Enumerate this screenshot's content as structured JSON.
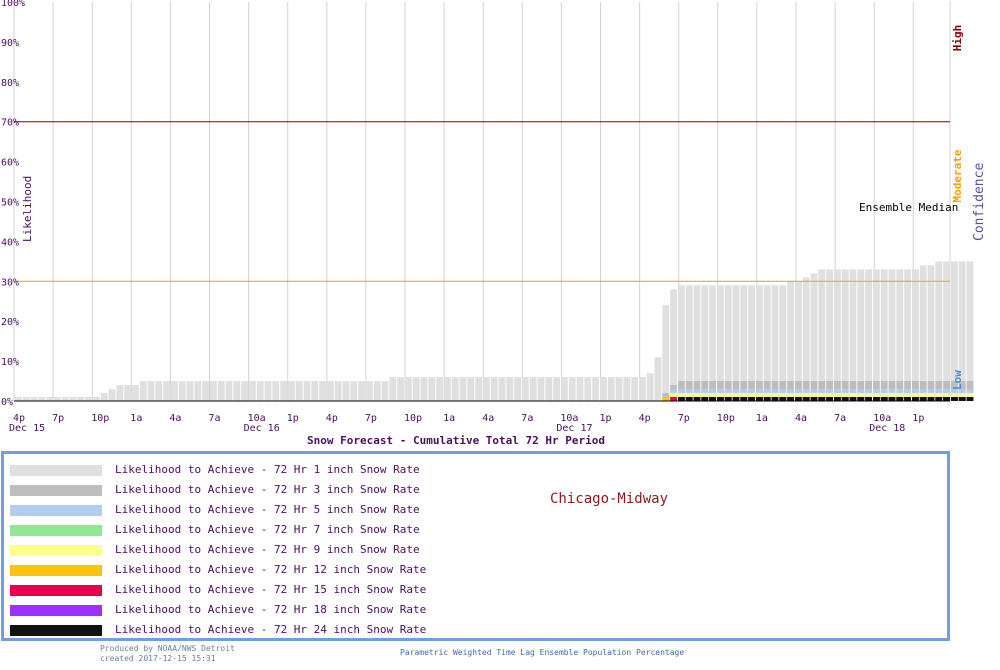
{
  "chart_data": {
    "type": "bar",
    "title": "Snow Forecast - Cumulative Total 72 Hr Period",
    "ylabel": "Likelihood",
    "ylim": [
      0,
      100
    ],
    "y_ticks": [
      "0%",
      "10%",
      "20%",
      "30%",
      "40%",
      "50%",
      "60%",
      "70%",
      "80%",
      "90%",
      "100%"
    ],
    "x_tick_labels": [
      "4p",
      "7p",
      "10p",
      "1a",
      "4a",
      "7a",
      "10a",
      "1p",
      "4p",
      "7p",
      "10p",
      "1a",
      "4a",
      "7a",
      "10a",
      "1p",
      "4p",
      "7p",
      "10p",
      "1a",
      "4a",
      "7a",
      "10a",
      "1p"
    ],
    "date_labels": [
      {
        "label": "Dec 15",
        "tick_index": 0
      },
      {
        "label": "Dec 16",
        "tick_index": 6
      },
      {
        "label": "Dec 17",
        "tick_index": 14
      },
      {
        "label": "Dec 18",
        "tick_index": 22
      }
    ],
    "confidence_label": "Confidence",
    "confidence_levels": [
      {
        "label": "High",
        "value": 70,
        "color": "#8b0000"
      },
      {
        "label": "Moderate",
        "value": 30,
        "color": "#f5a000"
      },
      {
        "label": "Low",
        "value": 5,
        "color": "#3d8fd6"
      }
    ],
    "median_label": "Ensemble Median",
    "series": [
      {
        "name": "Likelihood to Achieve -  72 Hr 1 inch Snow Rate",
        "color": "#e0e0e0",
        "values": [
          1,
          1,
          1,
          1,
          1,
          1,
          1,
          1,
          1,
          1,
          1,
          2,
          3,
          4,
          4,
          4,
          5,
          5,
          5,
          5,
          5,
          5,
          5,
          5,
          5,
          5,
          5,
          5,
          5,
          5,
          5,
          5,
          5,
          5,
          5,
          5,
          5,
          5,
          5,
          5,
          5,
          5,
          5,
          5,
          5,
          5,
          5,
          5,
          6,
          6,
          6,
          6,
          6,
          6,
          6,
          6,
          6,
          6,
          6,
          6,
          6,
          6,
          6,
          6,
          6,
          6,
          6,
          6,
          6,
          6,
          6,
          6,
          6,
          6,
          6,
          6,
          6,
          6,
          6,
          6,
          6,
          7,
          11,
          24,
          28,
          29,
          29,
          29,
          29,
          29,
          29,
          29,
          29,
          29,
          29,
          29,
          29,
          29,
          29,
          30,
          30,
          31,
          32,
          33,
          33,
          33,
          33,
          33,
          33,
          33,
          33,
          33,
          33,
          33,
          33,
          33,
          34,
          34,
          35,
          35,
          35,
          35,
          35
        ]
      },
      {
        "name": "Likelihood to Achieve -  72 Hr 3 inch Snow Rate",
        "color": "#bdbdbd",
        "values": [
          0,
          0,
          0,
          0,
          0,
          0,
          0,
          0,
          0,
          0,
          0,
          0,
          0,
          0,
          0,
          0,
          0,
          0,
          0,
          0,
          0,
          0,
          0,
          0,
          0,
          0,
          0,
          0,
          0,
          0,
          0,
          0,
          0,
          0,
          0,
          0,
          0,
          0,
          0,
          0,
          0,
          0,
          0,
          0,
          0,
          0,
          0,
          0,
          0,
          0,
          0,
          0,
          0,
          0,
          0,
          0,
          0,
          0,
          0,
          0,
          0,
          0,
          0,
          0,
          0,
          0,
          0,
          0,
          0,
          0,
          0,
          0,
          0,
          0,
          0,
          0,
          0,
          0,
          0,
          0,
          0,
          0,
          0,
          2,
          4,
          5,
          5,
          5,
          5,
          5,
          5,
          5,
          5,
          5,
          5,
          5,
          5,
          5,
          5,
          5,
          5,
          5,
          5,
          5,
          5,
          5,
          5,
          5,
          5,
          5,
          5,
          5,
          5,
          5,
          5,
          5,
          5,
          5,
          5,
          5,
          5,
          5,
          5
        ]
      },
      {
        "name": "Likelihood to Achieve -  72 Hr 5 inch Snow Rate",
        "color": "#b3cdf0",
        "values": [
          0,
          0,
          0,
          0,
          0,
          0,
          0,
          0,
          0,
          0,
          0,
          0,
          0,
          0,
          0,
          0,
          0,
          0,
          0,
          0,
          0,
          0,
          0,
          0,
          0,
          0,
          0,
          0,
          0,
          0,
          0,
          0,
          0,
          0,
          0,
          0,
          0,
          0,
          0,
          0,
          0,
          0,
          0,
          0,
          0,
          0,
          0,
          0,
          0,
          0,
          0,
          0,
          0,
          0,
          0,
          0,
          0,
          0,
          0,
          0,
          0,
          0,
          0,
          0,
          0,
          0,
          0,
          0,
          0,
          0,
          0,
          0,
          0,
          0,
          0,
          0,
          0,
          0,
          0,
          0,
          0,
          0,
          0,
          1,
          3,
          3,
          3,
          3,
          3,
          3,
          3,
          3,
          3,
          3,
          3,
          3,
          3,
          3,
          3,
          3,
          3,
          3,
          3,
          3,
          3,
          3,
          3,
          3,
          3,
          3,
          3,
          3,
          3,
          3,
          3,
          3,
          3,
          3,
          3,
          3,
          3,
          3,
          3
        ]
      },
      {
        "name": "Likelihood to Achieve -  72 Hr 7 inch Snow Rate",
        "color": "#90e890",
        "values": [
          0,
          0,
          0,
          0,
          0,
          0,
          0,
          0,
          0,
          0,
          0,
          0,
          0,
          0,
          0,
          0,
          0,
          0,
          0,
          0,
          0,
          0,
          0,
          0,
          0,
          0,
          0,
          0,
          0,
          0,
          0,
          0,
          0,
          0,
          0,
          0,
          0,
          0,
          0,
          0,
          0,
          0,
          0,
          0,
          0,
          0,
          0,
          0,
          0,
          0,
          0,
          0,
          0,
          0,
          0,
          0,
          0,
          0,
          0,
          0,
          0,
          0,
          0,
          0,
          0,
          0,
          0,
          0,
          0,
          0,
          0,
          0,
          0,
          0,
          0,
          0,
          0,
          0,
          0,
          0,
          0,
          0,
          0,
          1,
          2,
          2,
          2,
          2,
          2,
          2,
          2,
          2,
          2,
          2,
          2,
          2,
          2,
          2,
          2,
          2,
          2,
          2,
          2,
          2,
          2,
          2,
          2,
          2,
          2,
          2,
          2,
          2,
          2,
          2,
          2,
          2,
          2,
          2,
          2,
          2,
          2,
          2,
          2
        ]
      },
      {
        "name": "Likelihood to Achieve -  72 Hr 9 inch Snow Rate",
        "color": "#ffff8c",
        "values": [
          0,
          0,
          0,
          0,
          0,
          0,
          0,
          0,
          0,
          0,
          0,
          0,
          0,
          0,
          0,
          0,
          0,
          0,
          0,
          0,
          0,
          0,
          0,
          0,
          0,
          0,
          0,
          0,
          0,
          0,
          0,
          0,
          0,
          0,
          0,
          0,
          0,
          0,
          0,
          0,
          0,
          0,
          0,
          0,
          0,
          0,
          0,
          0,
          0,
          0,
          0,
          0,
          0,
          0,
          0,
          0,
          0,
          0,
          0,
          0,
          0,
          0,
          0,
          0,
          0,
          0,
          0,
          0,
          0,
          0,
          0,
          0,
          0,
          0,
          0,
          0,
          0,
          0,
          0,
          0,
          0,
          0,
          0,
          1,
          2,
          2,
          2,
          2,
          2,
          2,
          2,
          2,
          2,
          2,
          2,
          2,
          2,
          2,
          2,
          2,
          2,
          2,
          2,
          2,
          2,
          2,
          2,
          2,
          2,
          2,
          2,
          2,
          2,
          2,
          2,
          2,
          2,
          2,
          2,
          2,
          2,
          2,
          2
        ]
      },
      {
        "name": "Likelihood to Achieve -  72 Hr 12 inch Snow Rate",
        "color": "#ffc20e",
        "values": [
          0,
          0,
          0,
          0,
          0,
          0,
          0,
          0,
          0,
          0,
          0,
          0,
          0,
          0,
          0,
          0,
          0,
          0,
          0,
          0,
          0,
          0,
          0,
          0,
          0,
          0,
          0,
          0,
          0,
          0,
          0,
          0,
          0,
          0,
          0,
          0,
          0,
          0,
          0,
          0,
          0,
          0,
          0,
          0,
          0,
          0,
          0,
          0,
          0,
          0,
          0,
          0,
          0,
          0,
          0,
          0,
          0,
          0,
          0,
          0,
          0,
          0,
          0,
          0,
          0,
          0,
          0,
          0,
          0,
          0,
          0,
          0,
          0,
          0,
          0,
          0,
          0,
          0,
          0,
          0,
          0,
          0,
          0,
          1,
          1,
          1,
          1,
          1,
          1,
          1,
          1,
          1,
          1,
          1,
          1,
          1,
          1,
          1,
          1,
          1,
          1,
          1,
          1,
          1,
          1,
          1,
          1,
          1,
          1,
          1,
          1,
          1,
          1,
          1,
          1,
          1,
          1,
          1,
          1,
          1,
          1,
          1,
          1
        ]
      },
      {
        "name": "Likelihood to Achieve -  72 Hr 15 inch Snow Rate",
        "color": "#e8004c",
        "values": [
          0,
          0,
          0,
          0,
          0,
          0,
          0,
          0,
          0,
          0,
          0,
          0,
          0,
          0,
          0,
          0,
          0,
          0,
          0,
          0,
          0,
          0,
          0,
          0,
          0,
          0,
          0,
          0,
          0,
          0,
          0,
          0,
          0,
          0,
          0,
          0,
          0,
          0,
          0,
          0,
          0,
          0,
          0,
          0,
          0,
          0,
          0,
          0,
          0,
          0,
          0,
          0,
          0,
          0,
          0,
          0,
          0,
          0,
          0,
          0,
          0,
          0,
          0,
          0,
          0,
          0,
          0,
          0,
          0,
          0,
          0,
          0,
          0,
          0,
          0,
          0,
          0,
          0,
          0,
          0,
          0,
          0,
          0,
          0,
          1,
          1,
          1,
          1,
          1,
          1,
          1,
          1,
          1,
          1,
          1,
          1,
          1,
          1,
          1,
          1,
          1,
          1,
          1,
          1,
          1,
          1,
          1,
          1,
          1,
          1,
          1,
          1,
          1,
          1,
          1,
          1,
          1,
          1,
          1,
          1,
          1,
          1,
          1
        ]
      },
      {
        "name": "Likelihood to Achieve -  72 Hr 18 inch Snow Rate",
        "color": "#9b30ff",
        "values": [
          0,
          0,
          0,
          0,
          0,
          0,
          0,
          0,
          0,
          0,
          0,
          0,
          0,
          0,
          0,
          0,
          0,
          0,
          0,
          0,
          0,
          0,
          0,
          0,
          0,
          0,
          0,
          0,
          0,
          0,
          0,
          0,
          0,
          0,
          0,
          0,
          0,
          0,
          0,
          0,
          0,
          0,
          0,
          0,
          0,
          0,
          0,
          0,
          0,
          0,
          0,
          0,
          0,
          0,
          0,
          0,
          0,
          0,
          0,
          0,
          0,
          0,
          0,
          0,
          0,
          0,
          0,
          0,
          0,
          0,
          0,
          0,
          0,
          0,
          0,
          0,
          0,
          0,
          0,
          0,
          0,
          0,
          0,
          0,
          0,
          1,
          1,
          1,
          1,
          1,
          1,
          1,
          1,
          1,
          1,
          1,
          1,
          1,
          1,
          1,
          1,
          1,
          1,
          1,
          1,
          1,
          1,
          1,
          1,
          1,
          1,
          1,
          1,
          1,
          1,
          1,
          1,
          1,
          1,
          1,
          1,
          1,
          1
        ]
      },
      {
        "name": "Likelihood to Achieve -  72 Hr 24 inch Snow Rate",
        "color": "#111111",
        "values": [
          0,
          0,
          0,
          0,
          0,
          0,
          0,
          0,
          0,
          0,
          0,
          0,
          0,
          0,
          0,
          0,
          0,
          0,
          0,
          0,
          0,
          0,
          0,
          0,
          0,
          0,
          0,
          0,
          0,
          0,
          0,
          0,
          0,
          0,
          0,
          0,
          0,
          0,
          0,
          0,
          0,
          0,
          0,
          0,
          0,
          0,
          0,
          0,
          0,
          0,
          0,
          0,
          0,
          0,
          0,
          0,
          0,
          0,
          0,
          0,
          0,
          0,
          0,
          0,
          0,
          0,
          0,
          0,
          0,
          0,
          0,
          0,
          0,
          0,
          0,
          0,
          0,
          0,
          0,
          0,
          0,
          0,
          0,
          0,
          0,
          1,
          1,
          1,
          1,
          1,
          1,
          1,
          1,
          1,
          1,
          1,
          1,
          1,
          1,
          1,
          1,
          1,
          1,
          1,
          1,
          1,
          1,
          1,
          1,
          1,
          1,
          1,
          1,
          1,
          1,
          1,
          1,
          1,
          1,
          1,
          1,
          1,
          1
        ]
      }
    ]
  },
  "legend": {
    "station": "Chicago-Midway"
  },
  "footer": {
    "produced_by": "Produced by NOAA/NWS Detroit",
    "created": "created 2017-12-15 15:31",
    "method": "Parametric Weighted Time Lag Ensemble Population Percentage"
  }
}
